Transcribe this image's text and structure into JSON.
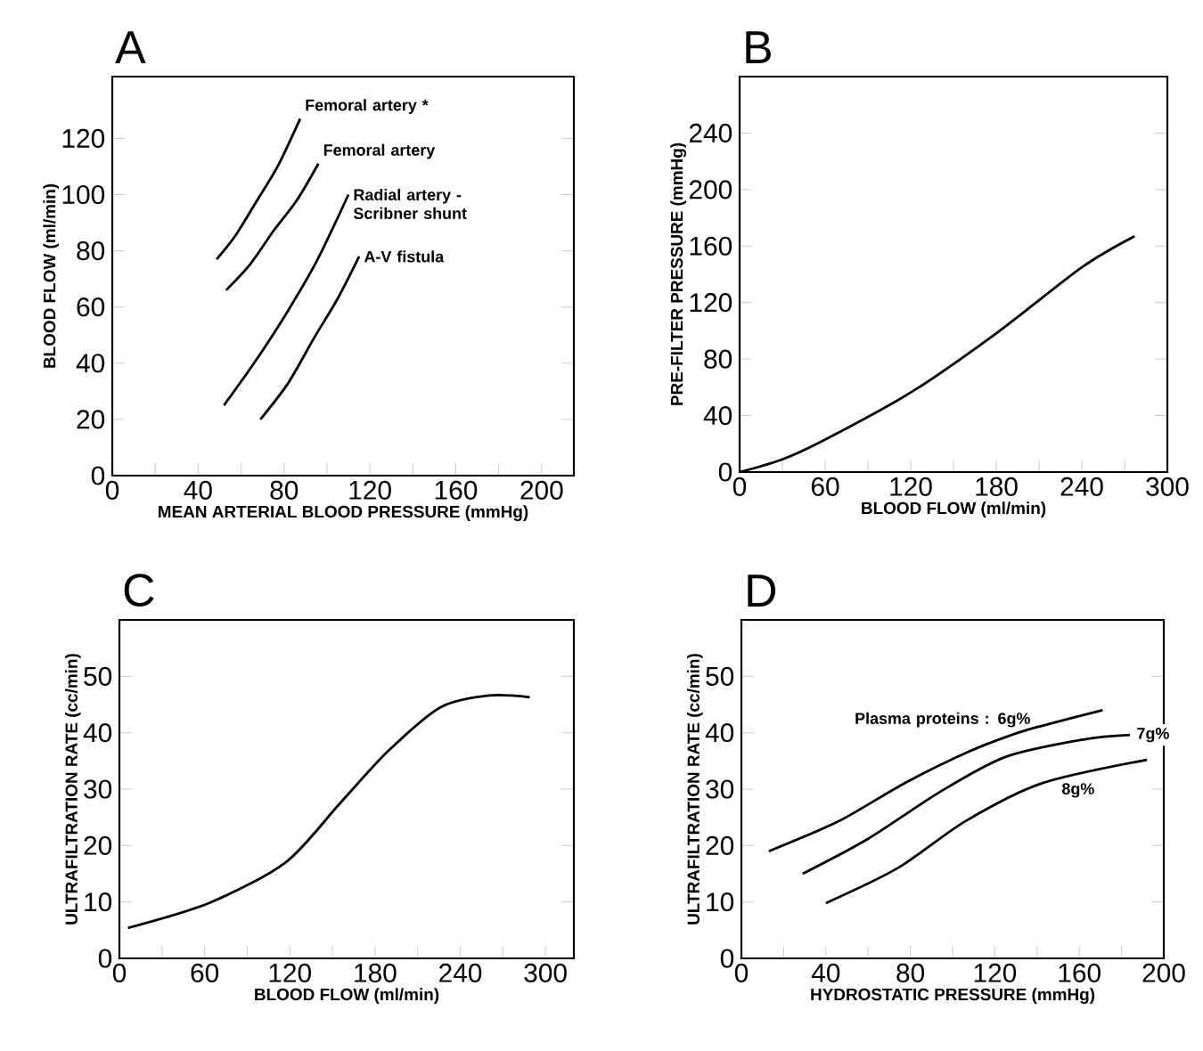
{
  "chart_data": [
    {
      "type": "line",
      "title": "A",
      "xlabel": "MEAN ARTERIAL BLOOD PRESSURE (mmHg)",
      "ylabel": "BLOOD FLOW (ml/min)",
      "xlim": [
        0,
        215
      ],
      "ylim": [
        0,
        142
      ],
      "xticks": [
        0,
        {
          "value": 20,
          "label": null
        },
        40,
        {
          "value": 60,
          "label": null
        },
        80,
        {
          "value": 100,
          "label": null
        },
        120,
        {
          "value": 140,
          "label": null
        },
        160,
        {
          "value": 180,
          "label": null
        },
        200
      ],
      "yticks": [
        0,
        20,
        40,
        60,
        80,
        100,
        120
      ],
      "legend": false,
      "grid": false,
      "series": [
        {
          "name": "Femoral artery *",
          "color": "#000000",
          "x": [
            48.6,
            57,
            66.7,
            77,
            87.5
          ],
          "values": [
            77,
            85,
            97,
            110,
            127
          ]
        },
        {
          "name": "Femoral artery",
          "color": "#000000",
          "x": [
            53,
            64,
            75,
            86,
            96
          ],
          "values": [
            66,
            75,
            87,
            98,
            111
          ]
        },
        {
          "name": "Radial artery - Scribner shunt",
          "color": "#000000",
          "x": [
            52,
            66,
            80.5,
            95,
            110
          ],
          "values": [
            25,
            40,
            57,
            76,
            100
          ]
        },
        {
          "name": "A-V fistula",
          "color": "#000000",
          "x": [
            69,
            82,
            94,
            105,
            115
          ],
          "values": [
            20,
            33,
            49,
            63,
            78
          ]
        }
      ]
    },
    {
      "type": "line",
      "title": "B",
      "xlabel": "BLOOD FLOW (ml/min)",
      "ylabel": "PRE-FILTER PRESSURE (mmHg)",
      "xlim": [
        0,
        300
      ],
      "ylim": [
        0,
        280
      ],
      "xticks": [
        0,
        {
          "value": 30,
          "label": null
        },
        60,
        {
          "value": 90,
          "label": null
        },
        120,
        {
          "value": 150,
          "label": null
        },
        180,
        {
          "value": 210,
          "label": null
        },
        240,
        {
          "value": 270,
          "label": null
        },
        300
      ],
      "yticks": [
        0,
        40,
        80,
        120,
        160,
        200,
        240
      ],
      "legend": false,
      "grid": false,
      "series": [
        {
          "color": "#000000",
          "x": [
            0,
            30,
            60,
            121,
            181,
            240,
            277
          ],
          "values": [
            0,
            9,
            23,
            57,
            99,
            145,
            167
          ]
        }
      ]
    },
    {
      "type": "line",
      "title": "C",
      "xlabel": "BLOOD FLOW (ml/min)",
      "ylabel": "ULTRAFILTRATION RATE (cc/min)",
      "xlim": [
        0,
        320
      ],
      "ylim": [
        0,
        60
      ],
      "xticks": [
        0,
        {
          "value": 30,
          "label": null
        },
        60,
        {
          "value": 90,
          "label": null
        },
        120,
        {
          "value": 150,
          "label": null
        },
        180,
        {
          "value": 210,
          "label": null
        },
        240,
        {
          "value": 270,
          "label": null
        },
        300
      ],
      "yticks": [
        0,
        10,
        20,
        30,
        40,
        50
      ],
      "legend": false,
      "grid": false,
      "series": [
        {
          "color": "#000000",
          "x": [
            6,
            63,
            117,
            155,
            189,
            226,
            260,
            289
          ],
          "values": [
            5.4,
            9.8,
            17,
            27.4,
            36.7,
            44.5,
            46.6,
            46.3
          ]
        }
      ]
    },
    {
      "type": "line",
      "title": "D",
      "xlabel": "HYDROSTATIC PRESSURE (mmHg)",
      "ylabel": "ULTRAFILTRATION RATE (cc/min)",
      "xlim": [
        0,
        200
      ],
      "ylim": [
        0,
        60
      ],
      "xticks": [
        0,
        {
          "value": 20,
          "label": null
        },
        40,
        {
          "value": 60,
          "label": null
        },
        80,
        {
          "value": 100,
          "label": null
        },
        120,
        {
          "value": 140,
          "label": null
        },
        160,
        {
          "value": 180,
          "label": null
        },
        200
      ],
      "yticks": [
        0,
        10,
        20,
        30,
        40,
        50
      ],
      "legend": false,
      "grid": false,
      "series": [
        {
          "name": "Plasma proteins : 6g%",
          "color": "#000000",
          "x": [
            13,
            46,
            77,
            108,
            131,
            144,
            171
          ],
          "values": [
            19,
            24.3,
            31,
            36.7,
            40,
            41.4,
            44
          ]
        },
        {
          "name": "7g%",
          "color": "#000000",
          "x": [
            29,
            60,
            94,
            125,
            162,
            184
          ],
          "values": [
            15,
            21.2,
            29.5,
            35.7,
            38.8,
            39.6
          ]
        },
        {
          "name": "8g%",
          "color": "#000000",
          "x": [
            40,
            74,
            106,
            142,
            192
          ],
          "values": [
            9.8,
            16,
            24.3,
            31,
            35.2
          ]
        }
      ]
    }
  ]
}
